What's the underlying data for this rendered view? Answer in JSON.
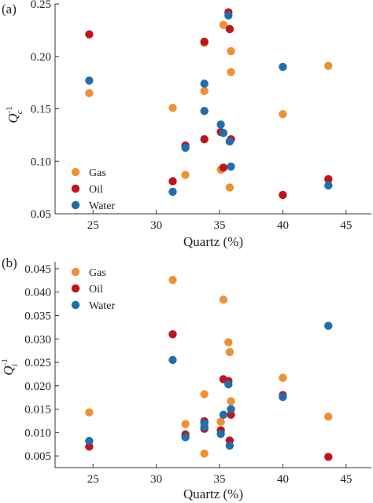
{
  "figure": {
    "colors": {
      "Gas": "#EE9135",
      "Oil": "#C0141C",
      "Water": "#1F6FAB"
    }
  },
  "chart_data": [
    {
      "type": "scatter",
      "panel_label": "(a)",
      "xlabel": "Quartz (%)",
      "ylabel_main": "Q",
      "ylabel_sup": "-1",
      "ylabel_sub": "c",
      "xlim": [
        22,
        47
      ],
      "ylim": [
        0.05,
        0.25
      ],
      "xticks": [
        25,
        30,
        35,
        40,
        45
      ],
      "xtick_labels": [
        "25",
        "30",
        "35",
        "40",
        "45"
      ],
      "yticks": [
        0.05,
        0.1,
        0.15,
        0.2,
        0.25
      ],
      "ytick_labels": [
        "0.05",
        "0.10",
        "0.15",
        "0.20",
        "0.25"
      ],
      "legend_position": "bottom-left",
      "series": [
        {
          "name": "Gas",
          "x": [
            24.7,
            31.3,
            32.3,
            33.8,
            33.8,
            35.1,
            35.3,
            35.8,
            35.9,
            35.9,
            40.0,
            43.6
          ],
          "y": [
            0.165,
            0.151,
            0.087,
            0.167,
            0.213,
            0.092,
            0.23,
            0.075,
            0.185,
            0.205,
            0.145,
            0.191
          ]
        },
        {
          "name": "Oil",
          "x": [
            24.7,
            31.3,
            32.3,
            33.8,
            33.8,
            35.1,
            35.3,
            35.7,
            35.8,
            35.9,
            40.0,
            43.6
          ],
          "y": [
            0.221,
            0.081,
            0.115,
            0.121,
            0.214,
            0.128,
            0.094,
            0.242,
            0.226,
            0.121,
            0.068,
            0.083
          ]
        },
        {
          "name": "Water",
          "x": [
            24.7,
            31.3,
            32.3,
            33.8,
            33.8,
            35.1,
            35.3,
            35.7,
            35.8,
            35.9,
            40.0,
            43.6
          ],
          "y": [
            0.177,
            0.071,
            0.113,
            0.174,
            0.148,
            0.135,
            0.127,
            0.239,
            0.119,
            0.095,
            0.19,
            0.077
          ]
        }
      ]
    },
    {
      "type": "scatter",
      "panel_label": "(b)",
      "xlabel": "Quartz (%)",
      "ylabel_main": "Q",
      "ylabel_sup": "-1",
      "ylabel_sub": "i",
      "xlim": [
        22,
        47
      ],
      "ylim": [
        0.0025,
        0.0465
      ],
      "xticks": [
        25,
        30,
        35,
        40,
        45
      ],
      "xtick_labels": [
        "25",
        "30",
        "35",
        "40",
        "45"
      ],
      "yticks": [
        0.005,
        0.01,
        0.015,
        0.02,
        0.025,
        0.03,
        0.035,
        0.04,
        0.045
      ],
      "ytick_labels": [
        "0.005",
        "0.010",
        "0.015",
        "0.020",
        "0.025",
        "0.030",
        "0.035",
        "0.040",
        "0.045"
      ],
      "legend_position": "top-left",
      "series": [
        {
          "name": "Gas",
          "x": [
            24.7,
            31.3,
            32.3,
            33.8,
            33.8,
            35.1,
            35.3,
            35.7,
            35.8,
            35.9,
            40.0,
            43.6
          ],
          "y": [
            0.0143,
            0.0426,
            0.0118,
            0.0055,
            0.0182,
            0.0123,
            0.0384,
            0.0293,
            0.0272,
            0.0167,
            0.0217,
            0.0134
          ]
        },
        {
          "name": "Oil",
          "x": [
            24.7,
            31.3,
            32.3,
            33.8,
            33.8,
            35.1,
            35.3,
            35.7,
            35.8,
            35.9,
            40.0,
            43.6
          ],
          "y": [
            0.007,
            0.031,
            0.0096,
            0.0108,
            0.0124,
            0.0105,
            0.0214,
            0.021,
            0.0083,
            0.0138,
            0.018,
            0.0048
          ]
        },
        {
          "name": "Water",
          "x": [
            24.7,
            31.3,
            32.3,
            33.8,
            33.8,
            35.1,
            35.3,
            35.7,
            35.8,
            35.9,
            40.0,
            43.6
          ],
          "y": [
            0.0082,
            0.0255,
            0.009,
            0.0112,
            0.012,
            0.0097,
            0.0138,
            0.0203,
            0.0072,
            0.015,
            0.0176,
            0.0328
          ]
        }
      ]
    }
  ]
}
